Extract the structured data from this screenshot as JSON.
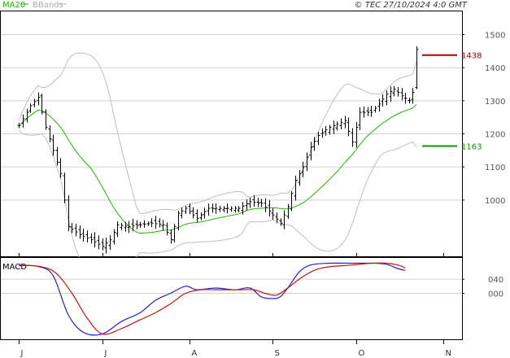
{
  "header": {
    "legend_ma": "MA20",
    "legend_bb": "BBands",
    "copyright": "© TEC 27/10/2024 4:0 GMT"
  },
  "colors": {
    "ma": "#1fb800",
    "bb": "#bfbfbf",
    "bar": "#000000",
    "resistance": "#b30000",
    "support": "#129400",
    "macd": "#2222cc",
    "signal": "#cc1111",
    "grid": "#d0d0d0"
  },
  "chart_data": [
    {
      "type": "ohlc",
      "title": "",
      "indicators": [
        "MA20",
        "BBands"
      ],
      "yticks": [
        1000,
        1100,
        1200,
        1300,
        1400,
        1500
      ],
      "ylim": [
        830,
        1570
      ],
      "xticks": [
        {
          "label": "J",
          "day": 0
        },
        {
          "label": "J",
          "day": 22
        },
        {
          "label": "A",
          "day": 45
        },
        {
          "label": "S",
          "day": 67
        },
        {
          "label": "O",
          "day": 89
        },
        {
          "label": "N",
          "day": 112
        }
      ],
      "xlim": [
        -5,
        117
      ],
      "levels": [
        {
          "label": "1438",
          "value": 1438,
          "color": "#b30000"
        },
        {
          "label": "1163",
          "value": 1163,
          "color": "#129400"
        }
      ],
      "close_anchors": [
        [
          0,
          1225
        ],
        [
          3,
          1285
        ],
        [
          5,
          1310
        ],
        [
          7,
          1220
        ],
        [
          9,
          1150
        ],
        [
          11,
          1080
        ],
        [
          13,
          920
        ],
        [
          16,
          895
        ],
        [
          19,
          880
        ],
        [
          22,
          860
        ],
        [
          24,
          880
        ],
        [
          26,
          925
        ],
        [
          29,
          920
        ],
        [
          32,
          925
        ],
        [
          35,
          930
        ],
        [
          38,
          925
        ],
        [
          40,
          880
        ],
        [
          42,
          960
        ],
        [
          44,
          975
        ],
        [
          47,
          945
        ],
        [
          50,
          975
        ],
        [
          54,
          975
        ],
        [
          58,
          975
        ],
        [
          61,
          995
        ],
        [
          64,
          990
        ],
        [
          67,
          955
        ],
        [
          69,
          930
        ],
        [
          71,
          980
        ],
        [
          73,
          1060
        ],
        [
          75,
          1100
        ],
        [
          77,
          1160
        ],
        [
          79,
          1195
        ],
        [
          82,
          1220
        ],
        [
          84,
          1230
        ],
        [
          86,
          1240
        ],
        [
          88,
          1175
        ],
        [
          90,
          1265
        ],
        [
          93,
          1265
        ],
        [
          95,
          1290
        ],
        [
          97,
          1320
        ],
        [
          99,
          1335
        ],
        [
          101,
          1315
        ],
        [
          103,
          1300
        ],
        [
          104,
          1325
        ],
        [
          105,
          1455
        ]
      ],
      "last_bar": {
        "open": 1340,
        "high": 1465,
        "low": 1335,
        "close": 1455
      }
    },
    {
      "type": "line",
      "title": "MACD",
      "yticks": [
        0,
        40
      ],
      "ytick_labels": [
        "000",
        "040"
      ],
      "ylim": [
        -130,
        100
      ],
      "series": [
        {
          "name": "",
          "role": "macd",
          "points": [
            [
              0,
              78
            ],
            [
              5,
              76
            ],
            [
              9,
              50
            ],
            [
              13,
              -60
            ],
            [
              17,
              -110
            ],
            [
              22,
              -115
            ],
            [
              27,
              -80
            ],
            [
              32,
              -55
            ],
            [
              36,
              -20
            ],
            [
              40,
              0
            ],
            [
              44,
              20
            ],
            [
              47,
              10
            ],
            [
              52,
              15
            ],
            [
              57,
              10
            ],
            [
              61,
              15
            ],
            [
              64,
              -10
            ],
            [
              67,
              -15
            ],
            [
              69,
              -10
            ],
            [
              71,
              15
            ],
            [
              74,
              60
            ],
            [
              77,
              80
            ],
            [
              82,
              85
            ],
            [
              88,
              85
            ],
            [
              93,
              85
            ],
            [
              97,
              82
            ],
            [
              100,
              70
            ],
            [
              102,
              65
            ]
          ]
        },
        {
          "name": "",
          "role": "signal",
          "points": [
            [
              0,
              80
            ],
            [
              6,
              75
            ],
            [
              10,
              55
            ],
            [
              14,
              0
            ],
            [
              18,
              -70
            ],
            [
              22,
              -115
            ],
            [
              27,
              -100
            ],
            [
              32,
              -75
            ],
            [
              36,
              -55
            ],
            [
              40,
              -30
            ],
            [
              44,
              0
            ],
            [
              48,
              10
            ],
            [
              52,
              10
            ],
            [
              58,
              10
            ],
            [
              62,
              10
            ],
            [
              65,
              0
            ],
            [
              68,
              -5
            ],
            [
              71,
              15
            ],
            [
              74,
              40
            ],
            [
              78,
              65
            ],
            [
              82,
              75
            ],
            [
              88,
              80
            ],
            [
              93,
              85
            ],
            [
              97,
              85
            ],
            [
              100,
              80
            ],
            [
              102,
              72
            ]
          ]
        }
      ]
    }
  ]
}
